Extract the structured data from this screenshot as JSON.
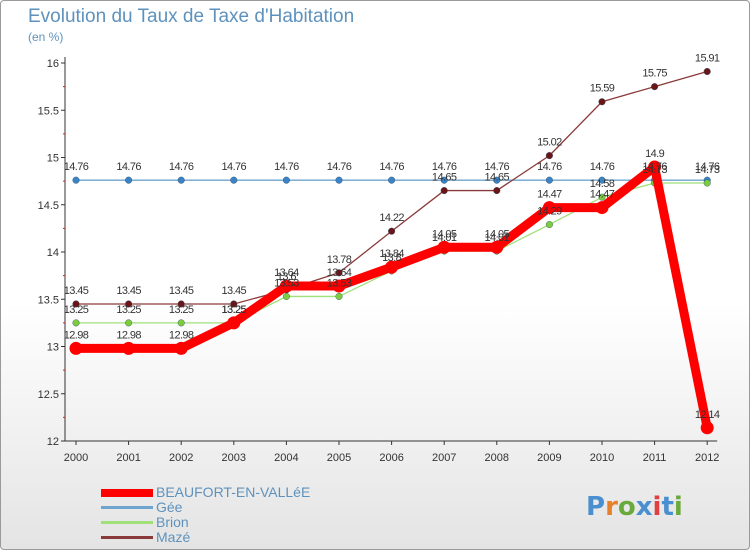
{
  "title": "Evolution du Taux de Taxe d'Habitation",
  "subtitle": "(en %)",
  "logo": {
    "text": "Proxiti",
    "letter_colors": [
      "#4a8fd0",
      "#e7802b",
      "#6aaa3c",
      "#4a8fd0",
      "#e04040",
      "#4a8fd0",
      "#6aaa3c"
    ]
  },
  "chart_data": {
    "type": "line",
    "x": [
      "2000",
      "2001",
      "2002",
      "2003",
      "2004",
      "2005",
      "2006",
      "2007",
      "2008",
      "2009",
      "2010",
      "2011",
      "2012"
    ],
    "ylim": [
      12,
      16
    ],
    "yticks": [
      "12",
      "12.5",
      "13",
      "13.5",
      "14",
      "14.5",
      "15",
      "15.5",
      "16"
    ],
    "grid": false,
    "legend_position": "bottom-left",
    "series": [
      {
        "name": "BEAUFORT-EN-VALLéE",
        "color": "#ff0000",
        "point_color": "#ff0000",
        "values": [
          12.98,
          12.98,
          12.98,
          13.25,
          13.64,
          13.64,
          13.84,
          14.05,
          14.05,
          14.47,
          14.47,
          14.9,
          12.14
        ],
        "labels": [
          "12.98",
          "12.98",
          "12.98",
          "13.25",
          "13.64",
          "13.64",
          "13.84",
          "14.05",
          "14.05",
          "14.47",
          "14.47",
          "14.9",
          "12.14"
        ]
      },
      {
        "name": "Gée",
        "color": "#6fa4cf",
        "point_color": "#3a83c4",
        "values": [
          14.76,
          14.76,
          14.76,
          14.76,
          14.76,
          14.76,
          14.76,
          14.76,
          14.76,
          14.76,
          14.76,
          14.76,
          14.76
        ],
        "labels": [
          "14.76",
          "14.76",
          "14.76",
          "14.76",
          "14.76",
          "14.76",
          "14.76",
          "14.76",
          "14.76",
          "14.76",
          "14.76",
          "14.76",
          "14.76"
        ]
      },
      {
        "name": "Brion",
        "color": "#9fe07a",
        "point_color": "#7ccc3e",
        "values": [
          13.25,
          13.25,
          13.25,
          13.25,
          13.53,
          13.53,
          13.8,
          14.01,
          14.01,
          14.29,
          14.58,
          14.73,
          14.73
        ],
        "labels": [
          "13.25",
          "13.25",
          "13.25",
          "13.25",
          "13.53",
          "13.53",
          "13.8",
          "14.01",
          "14.01",
          "14.29",
          "14.58",
          "14.73",
          "14.73"
        ]
      },
      {
        "name": "Mazé",
        "color": "#8a3a3a",
        "point_color": "#6a1616",
        "values": [
          13.45,
          13.45,
          13.45,
          13.45,
          13.6,
          13.78,
          14.22,
          14.65,
          14.65,
          15.02,
          15.59,
          15.75,
          15.91
        ],
        "labels": [
          "13.45",
          "13.45",
          "13.45",
          "13.45",
          "13.6",
          "13.78",
          "14.22",
          "14.65",
          "14.65",
          "15.02",
          "15.59",
          "15.75",
          "15.91"
        ]
      }
    ]
  }
}
